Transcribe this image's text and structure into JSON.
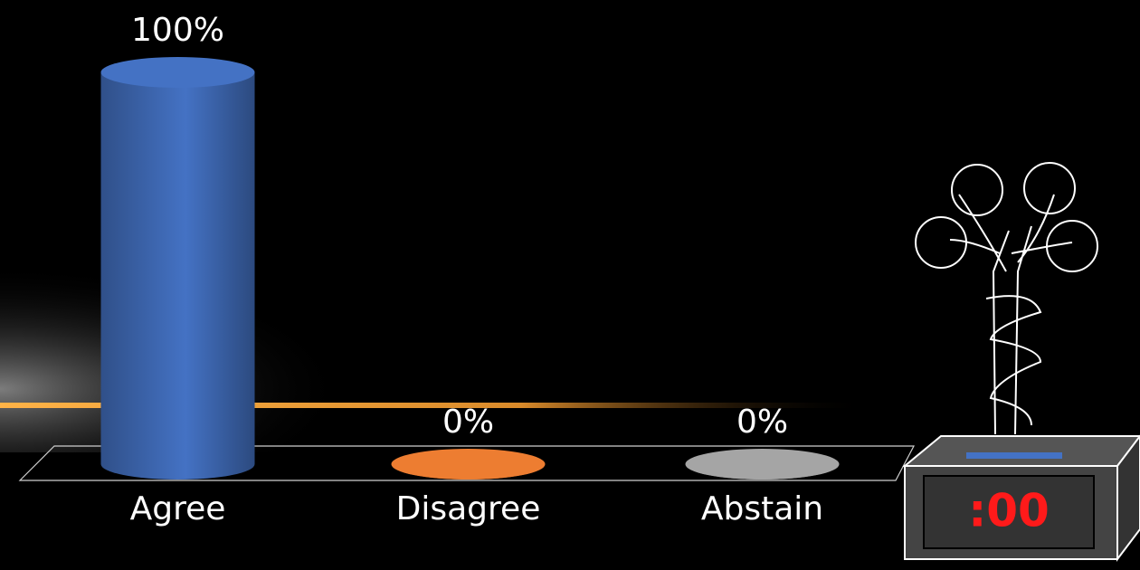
{
  "chart_data": {
    "type": "bar",
    "categories": [
      "Agree",
      "Disagree",
      "Abstain"
    ],
    "values": [
      100,
      0,
      0
    ],
    "value_labels": [
      "100%",
      "0%",
      "0%"
    ],
    "colors": [
      "#4472c4",
      "#ed7d31",
      "#a5a5a5"
    ]
  },
  "timer": {
    "text": ":00"
  }
}
